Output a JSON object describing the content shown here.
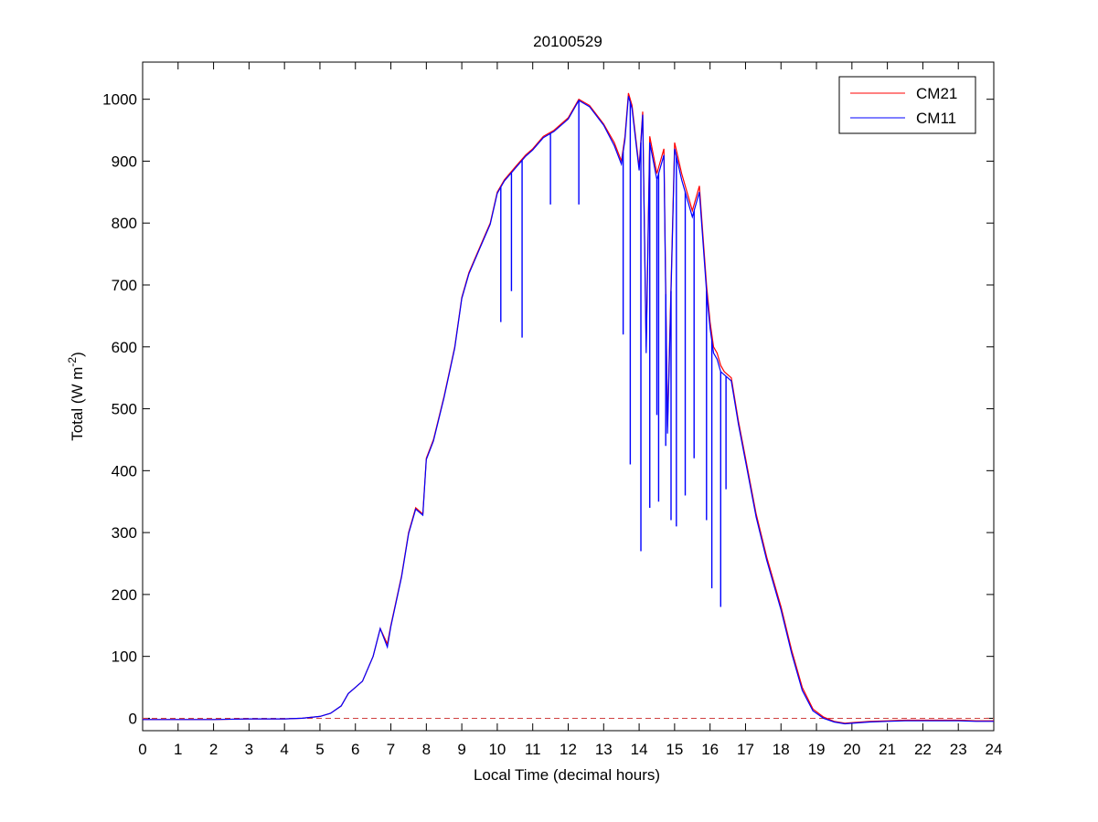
{
  "figure": {
    "title": "20100529",
    "xlabel": "Local Time (decimal hours)",
    "ylabel_main": "Total (W m",
    "ylabel_sup": "-2",
    "ylabel_end": ")"
  },
  "chart_data": {
    "type": "line",
    "title": "20100529",
    "xlabel": "Local Time (decimal hours)",
    "ylabel": "Total (W m^-2)",
    "xlim": [
      0,
      24
    ],
    "ylim": [
      -20,
      1060
    ],
    "xticks": [
      0,
      1,
      2,
      3,
      4,
      5,
      6,
      7,
      8,
      9,
      10,
      11,
      12,
      13,
      14,
      15,
      16,
      17,
      18,
      19,
      20,
      21,
      22,
      23,
      24
    ],
    "yticks": [
      0,
      100,
      200,
      300,
      400,
      500,
      600,
      700,
      800,
      900,
      1000
    ],
    "grid": false,
    "legend_position": "top-right",
    "reference_line": {
      "y": 0,
      "style": "dashed",
      "color": "#d04040"
    },
    "colors": {
      "CM21": "#ff0000",
      "CM11": "#0000ff"
    },
    "series": [
      {
        "name": "CM21",
        "x": [
          0,
          1,
          2,
          3,
          4,
          4.5,
          5,
          5.3,
          5.6,
          5.8,
          6,
          6.2,
          6.5,
          6.7,
          6.9,
          7,
          7.3,
          7.5,
          7.7,
          7.9,
          8,
          8.2,
          8.5,
          8.8,
          9,
          9.2,
          9.5,
          9.8,
          10,
          10.2,
          10.5,
          10.8,
          11,
          11.3,
          11.6,
          12,
          12.3,
          12.6,
          13,
          13.3,
          13.5,
          13.6,
          13.7,
          13.8,
          14,
          14.1,
          14.2,
          14.3,
          14.5,
          14.7,
          14.8,
          15,
          15.2,
          15.4,
          15.5,
          15.7,
          15.9,
          16,
          16.1,
          16.2,
          16.3,
          16.4,
          16.6,
          16.8,
          17,
          17.3,
          17.6,
          18,
          18.3,
          18.6,
          18.9,
          19.2,
          19.5,
          19.8,
          20,
          20.5,
          21,
          21.5,
          22,
          22.5,
          23,
          23.5,
          24
        ],
        "values": [
          -2,
          -2,
          -2,
          -1,
          -1,
          0,
          3,
          8,
          20,
          40,
          50,
          60,
          100,
          145,
          120,
          150,
          230,
          300,
          340,
          330,
          420,
          450,
          520,
          600,
          680,
          720,
          760,
          800,
          850,
          870,
          890,
          910,
          920,
          940,
          950,
          970,
          1000,
          990,
          960,
          930,
          900,
          940,
          1010,
          990,
          890,
          980,
          600,
          940,
          880,
          920,
          470,
          930,
          880,
          840,
          820,
          860,
          700,
          640,
          600,
          590,
          570,
          560,
          550,
          480,
          420,
          330,
          260,
          180,
          110,
          50,
          15,
          2,
          -5,
          -8,
          -7,
          -5,
          -4,
          -3,
          -3,
          -3,
          -3,
          -4,
          -4
        ]
      },
      {
        "name": "CM11",
        "x": [
          0,
          1,
          2,
          3,
          4,
          4.5,
          5,
          5.3,
          5.6,
          5.8,
          6,
          6.2,
          6.5,
          6.7,
          6.9,
          7,
          7.3,
          7.5,
          7.7,
          7.9,
          8,
          8.2,
          8.5,
          8.8,
          9,
          9.2,
          9.5,
          9.8,
          10,
          10.2,
          10.5,
          10.8,
          11,
          11.3,
          11.6,
          12,
          12.3,
          12.6,
          13,
          13.3,
          13.5,
          13.6,
          13.7,
          13.8,
          14,
          14.1,
          14.2,
          14.3,
          14.5,
          14.7,
          14.8,
          15,
          15.2,
          15.4,
          15.5,
          15.7,
          15.9,
          16,
          16.1,
          16.2,
          16.3,
          16.4,
          16.6,
          16.8,
          17,
          17.3,
          17.6,
          18,
          18.3,
          18.6,
          18.9,
          19.2,
          19.5,
          19.8,
          20,
          20.5,
          21,
          21.5,
          22,
          22.5,
          23,
          23.5,
          24
        ],
        "values": [
          -2,
          -2,
          -2,
          -1,
          -1,
          0,
          3,
          8,
          20,
          40,
          50,
          60,
          100,
          145,
          115,
          148,
          228,
          298,
          338,
          328,
          418,
          448,
          518,
          598,
          678,
          718,
          758,
          798,
          848,
          868,
          888,
          908,
          918,
          938,
          948,
          968,
          998,
          988,
          958,
          925,
          895,
          935,
          1005,
          985,
          885,
          975,
          590,
          930,
          870,
          910,
          460,
          920,
          870,
          830,
          810,
          850,
          690,
          630,
          590,
          580,
          560,
          555,
          545,
          475,
          415,
          325,
          255,
          175,
          105,
          45,
          12,
          0,
          -6,
          -9,
          -8,
          -6,
          -5,
          -4,
          -4,
          -4,
          -4,
          -5,
          -5
        ]
      }
    ],
    "cloud_dips": {
      "x": [
        10.1,
        10.4,
        10.7,
        11.5,
        12.3,
        13.55,
        13.75,
        14.05,
        14.3,
        14.5,
        14.55,
        14.75,
        14.9,
        15.05,
        15.3,
        15.55,
        15.9,
        16.05,
        16.3,
        16.45
      ],
      "values": [
        640,
        690,
        615,
        830,
        830,
        620,
        410,
        270,
        340,
        490,
        350,
        440,
        320,
        310,
        360,
        420,
        320,
        210,
        180,
        370
      ]
    }
  }
}
